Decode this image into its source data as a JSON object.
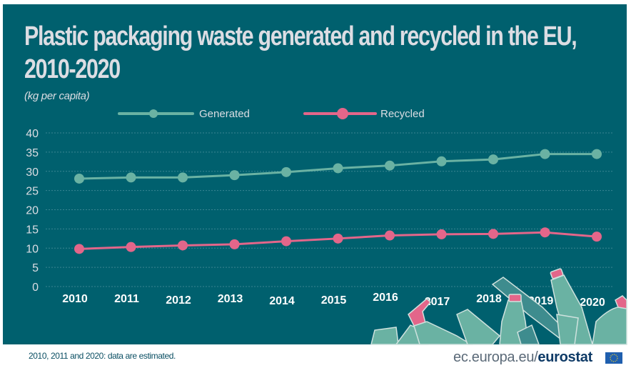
{
  "header": {
    "title_line1": "Plastic packaging waste generated and recycled in the EU,",
    "title_line2": "2010-2020",
    "unit": "(kg per capita)"
  },
  "colors": {
    "background": "#00606e",
    "generated": "#6ab2a3",
    "recycled": "#e3668a",
    "text": "#dcdde3",
    "gridline": "#3a8592"
  },
  "footer": {
    "note": "2010, 2011 and 2020: data are estimated.",
    "brand_prefix": "ec.europa.eu/",
    "brand_name": "eurostat"
  },
  "chart_data": {
    "type": "line",
    "title": "Plastic packaging waste generated and recycled in the EU, 2010-2020",
    "subtitle": "(kg per capita)",
    "xlabel": "",
    "ylabel": "kg per capita",
    "x": [
      "2010",
      "2011",
      "2012",
      "2013",
      "2014",
      "2015",
      "2016",
      "2017",
      "2018",
      "2019",
      "2020"
    ],
    "ylim": [
      0,
      40
    ],
    "yticks": [
      0,
      5,
      10,
      15,
      20,
      25,
      30,
      35,
      40
    ],
    "grid": true,
    "legend_position": "top",
    "series": [
      {
        "name": "Generated",
        "color": "#6ab2a3",
        "values": [
          28.1,
          28.4,
          28.4,
          29.0,
          29.8,
          30.8,
          31.5,
          32.6,
          33.1,
          34.5,
          34.5
        ]
      },
      {
        "name": "Recycled",
        "color": "#e3668a",
        "values": [
          9.8,
          10.3,
          10.7,
          11.0,
          11.8,
          12.5,
          13.3,
          13.6,
          13.7,
          14.1,
          13.0
        ]
      }
    ]
  }
}
